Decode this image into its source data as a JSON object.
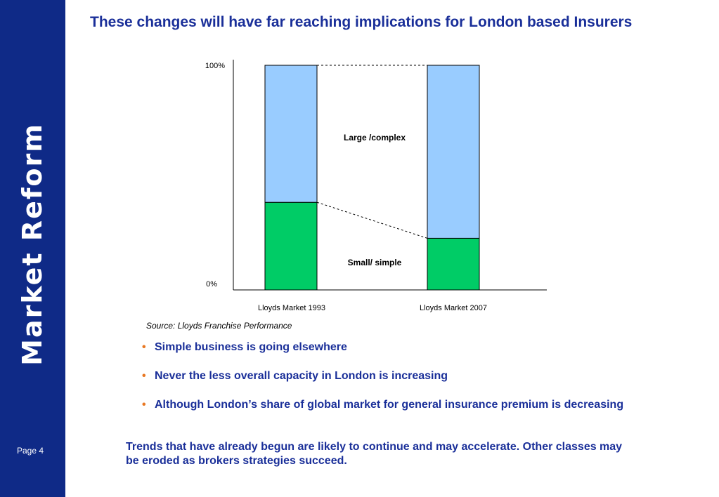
{
  "sidebar": {
    "title": "Market Reform",
    "page_label": "Page 4"
  },
  "slide_title": "These changes will have far reaching implications for London based Insurers",
  "chart_data": {
    "type": "bar",
    "stacked": true,
    "categories": [
      "Lloyds Market 1993",
      "Lloyds Market 2007"
    ],
    "series": [
      {
        "name": "Small/ simple",
        "values": [
          39,
          23
        ],
        "color": "#00cc66"
      },
      {
        "name": "Large /complex",
        "values": [
          61,
          77
        ],
        "color": "#99ccff"
      }
    ],
    "ytick_labels": [
      "0%",
      "100%"
    ],
    "ylim": [
      0,
      100
    ],
    "legend": "inline labels between bars",
    "grid": false
  },
  "source": "Source: Lloyds Franchise Performance",
  "bullets": [
    "Simple business is going elsewhere",
    "Never the less overall capacity in London is increasing",
    "Although London’s share of global market for general insurance premium is decreasing"
  ],
  "bullet_marker": "•",
  "footer_text": "Trends that have already begun are likely to continue and may accelerate. Other classes may be eroded as brokers strategies succeed."
}
